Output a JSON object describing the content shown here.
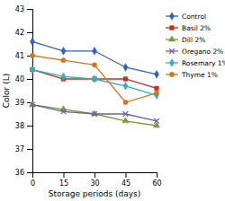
{
  "chart_data": {
    "type": "line",
    "xlabel": "Storage periods (days)",
    "ylabel": "Color (L)",
    "x": [
      0,
      15,
      30,
      45,
      60
    ],
    "series": [
      {
        "name": "Control",
        "color": "#3060c0",
        "marker": "diamond",
        "values": [
          41.6,
          41.2,
          41.2,
          40.5,
          40.2
        ]
      },
      {
        "name": "Basil 2%",
        "color": "#c03020",
        "marker": "square",
        "values": [
          40.4,
          40.0,
          40.0,
          40.0,
          39.6
        ]
      },
      {
        "name": "Dill 2%",
        "color": "#70a030",
        "marker": "triangle",
        "values": [
          38.9,
          38.7,
          38.5,
          38.2,
          38.0
        ]
      },
      {
        "name": "Oregano 2%",
        "color": "#7060a0",
        "marker": "x",
        "values": [
          38.9,
          38.6,
          38.5,
          38.5,
          38.2
        ]
      },
      {
        "name": "Rosemary 1%",
        "color": "#30b0c0",
        "marker": "diamond",
        "values": [
          40.4,
          40.1,
          40.0,
          39.7,
          39.3
        ]
      },
      {
        "name": "Thyme 1%",
        "color": "#d07820",
        "marker": "circle",
        "values": [
          41.0,
          40.8,
          40.6,
          39.0,
          39.4
        ]
      }
    ],
    "xlim": [
      0,
      60
    ],
    "xticks": [
      0,
      15,
      30,
      45,
      60
    ],
    "ylim": [
      36,
      43
    ],
    "yticks": [
      36,
      37,
      38,
      39,
      40,
      41,
      42,
      43
    ],
    "grid": false,
    "legend": "right"
  }
}
